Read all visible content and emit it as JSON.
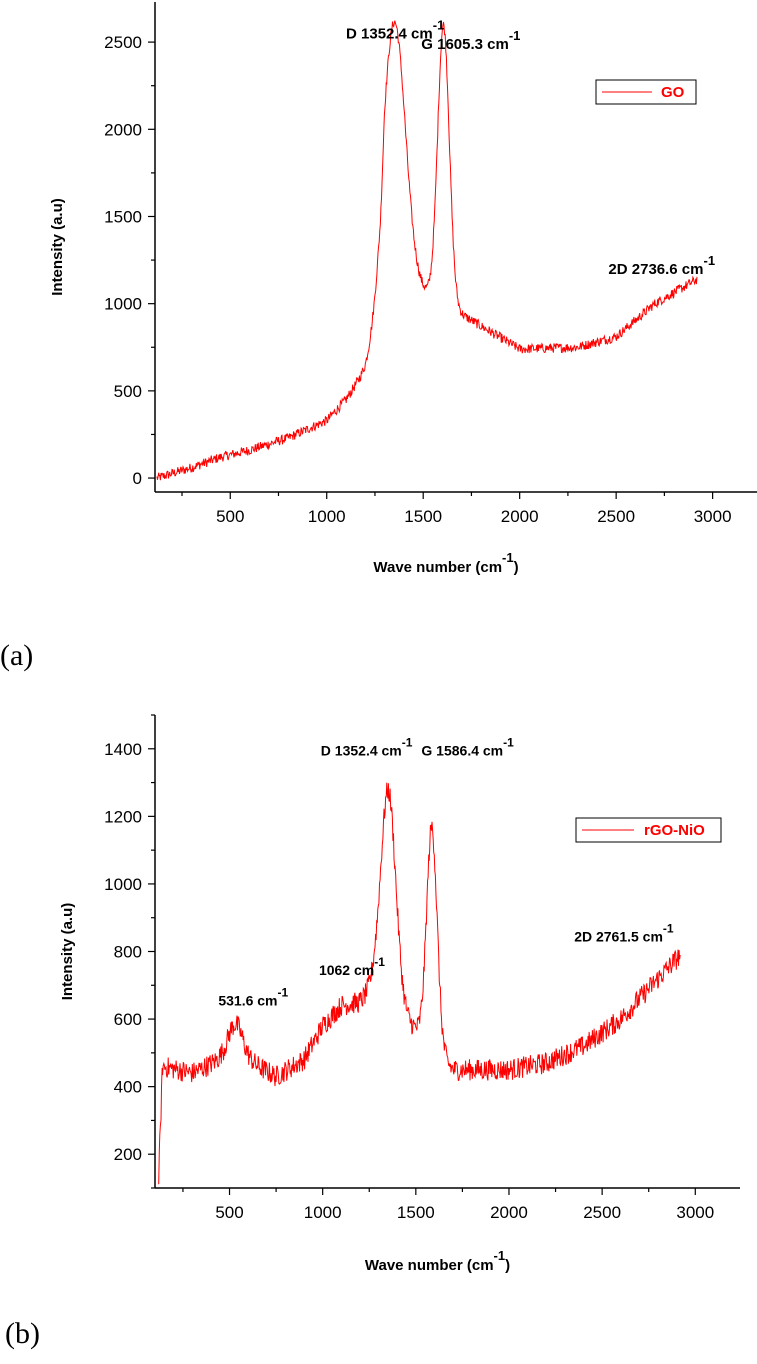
{
  "series_color": "#ff0000",
  "chart_data": [
    {
      "type": "line",
      "panel_label": "(a)",
      "xlabel": "Wave number (cm",
      "xlabel_sup": "-1",
      "xlabel_close": ")",
      "ylabel": "Intensity (a.u)",
      "xlim": [
        110,
        3230
      ],
      "ylim": [
        -80,
        2730
      ],
      "xticks": [
        500,
        1000,
        1500,
        2000,
        2500,
        3000
      ],
      "yticks": [
        0,
        500,
        1000,
        1500,
        2000,
        2500
      ],
      "legend": "GO",
      "legend_position": "top-right",
      "series": [
        {
          "name": "GO",
          "x_range": [
            120,
            2920
          ],
          "noise": 28,
          "baseline": [
            [
              120,
              0
            ],
            [
              300,
              60
            ],
            [
              450,
              120
            ],
            [
              600,
              160
            ],
            [
              800,
              230
            ],
            [
              1000,
              330
            ],
            [
              1100,
              450
            ],
            [
              1200,
              620
            ],
            [
              1280,
              900
            ],
            [
              1300,
              1200
            ],
            [
              2000,
              740
            ],
            [
              2300,
              750
            ],
            [
              2500,
              810
            ],
            [
              2700,
              1000
            ],
            [
              2920,
              1140
            ]
          ],
          "peaks": [
            {
              "center": 1352.4,
              "height": 1450,
              "width": 55
            },
            {
              "center": 1605.3,
              "height": 1600,
              "width": 30
            }
          ]
        }
      ],
      "annotations": [
        {
          "text": "D 1352.4 cm",
          "sup": "-1",
          "x": 1100,
          "y": 2520
        },
        {
          "text": "G 1605.3 cm",
          "sup": "-1",
          "x": 1490,
          "y": 2460
        },
        {
          "text": "2D 2736.6 cm",
          "sup": "-1",
          "x": 2460,
          "y": 1170
        }
      ]
    },
    {
      "type": "line",
      "panel_label": "(b)",
      "xlabel": "Wave number (cm",
      "xlabel_sup": "-1",
      "xlabel_close": ")",
      "ylabel": "Intensity (a.u)",
      "xlim": [
        100,
        3240
      ],
      "ylim": [
        100,
        1500
      ],
      "xticks": [
        500,
        1000,
        1500,
        2000,
        2500,
        3000
      ],
      "yticks": [
        200,
        400,
        600,
        800,
        1000,
        1200,
        1400
      ],
      "legend": "rGO-NiO",
      "legend_position": "top-right",
      "series": [
        {
          "name": "rGO-NiO",
          "x_range": [
            120,
            2920
          ],
          "noise": 32,
          "baseline": [
            [
              120,
              130
            ],
            [
              140,
              460
            ],
            [
              300,
              440
            ],
            [
              450,
              480
            ],
            [
              620,
              470
            ],
            [
              750,
              430
            ],
            [
              900,
              480
            ],
            [
              1000,
              580
            ],
            [
              1100,
              640
            ],
            [
              1200,
              650
            ],
            [
              1280,
              700
            ],
            [
              1700,
              450
            ],
            [
              2000,
              450
            ],
            [
              2200,
              470
            ],
            [
              2400,
              520
            ],
            [
              2600,
              600
            ],
            [
              2800,
              720
            ],
            [
              2920,
              790
            ]
          ],
          "peaks": [
            {
              "center": 531.6,
              "height": 110,
              "width": 40
            },
            {
              "center": 1352.4,
              "height": 620,
              "width": 40
            },
            {
              "center": 1586.4,
              "height": 650,
              "width": 28
            }
          ]
        }
      ],
      "annotations": [
        {
          "text": "531.6 cm",
          "sup": "-1",
          "x": 440,
          "y": 640
        },
        {
          "text": "1062 cm",
          "sup": "-1",
          "x": 980,
          "y": 730
        },
        {
          "text": "D 1352.4 cm",
          "sup": "-1",
          "x": 990,
          "y": 1380
        },
        {
          "text": "G 1586.4 cm",
          "sup": "-1",
          "x": 1530,
          "y": 1380
        },
        {
          "text": "2D 2761.5 cm",
          "sup": "-1",
          "x": 2350,
          "y": 830
        }
      ]
    }
  ]
}
